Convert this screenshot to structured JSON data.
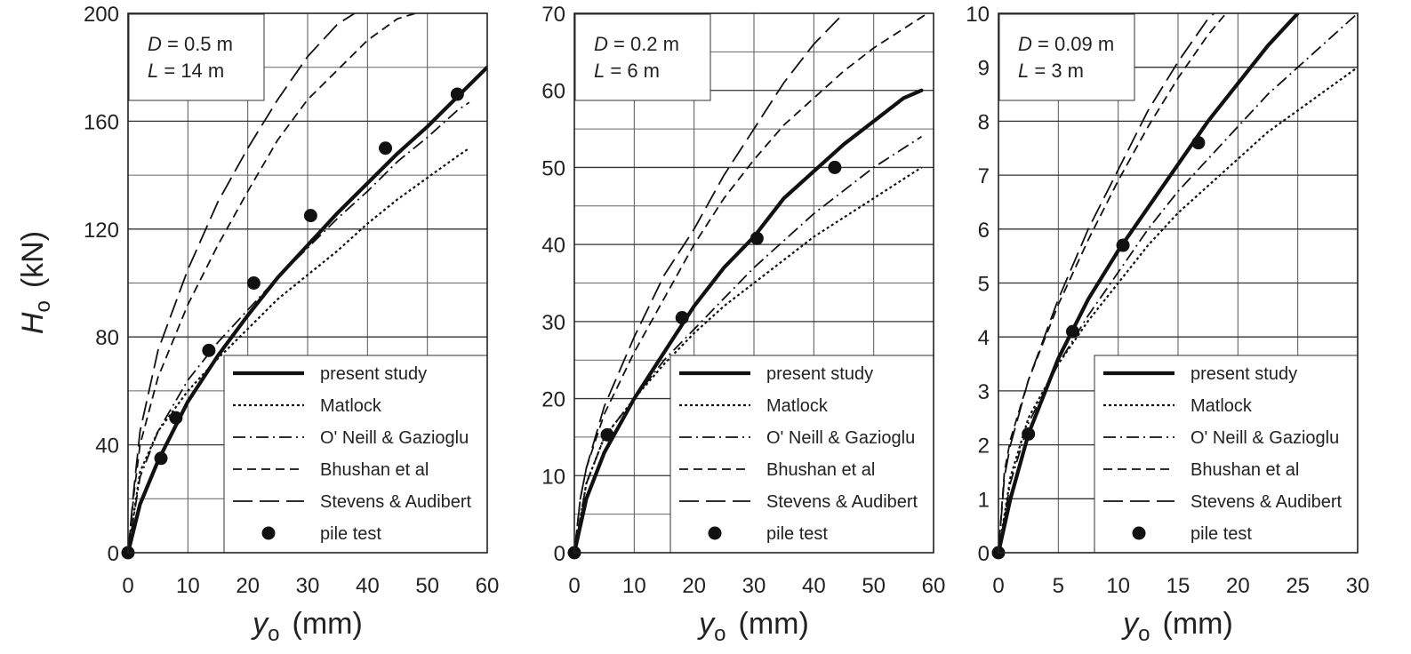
{
  "figure": {
    "ylabel_symbol": "H",
    "ylabel_sub": "o",
    "ylabel_unit": "(kN)",
    "xlabel_symbol": "y",
    "xlabel_sub": "o",
    "xlabel_unit": "(mm)"
  },
  "legend": [
    {
      "key": "present",
      "label": "present study",
      "kind": "line",
      "color": "#111111"
    },
    {
      "key": "matlock",
      "label": "Matlock",
      "kind": "line",
      "color": "#111111"
    },
    {
      "key": "oneill",
      "label": "O' Neill & Gazioglu",
      "kind": "line",
      "color": "#111111"
    },
    {
      "key": "bhushan",
      "label": "Bhushan et al",
      "kind": "line",
      "color": "#111111"
    },
    {
      "key": "stevens",
      "label": "Stevens & Audibert",
      "kind": "line",
      "color": "#111111"
    },
    {
      "key": "test",
      "label": "pile test",
      "kind": "marker",
      "color": "#111111"
    }
  ],
  "chart_data": [
    {
      "type": "line",
      "annotation": {
        "d_symbol": "D",
        "d_value": " = 0.5 m",
        "l_symbol": "L",
        "l_value": " = 14 m"
      },
      "xlim": [
        0,
        60
      ],
      "ylim": [
        0,
        200
      ],
      "xticks": [
        0,
        10,
        20,
        30,
        40,
        50,
        60
      ],
      "yticks": [
        0,
        40,
        80,
        120,
        160,
        200
      ],
      "grid": true,
      "legend_position": "bottom-right",
      "series": [
        {
          "key": "present",
          "x": [
            0,
            2,
            5,
            10,
            15,
            20,
            25,
            30,
            35,
            40,
            45,
            50,
            55,
            60
          ],
          "y": [
            0,
            18,
            34,
            56,
            73,
            88,
            102,
            114,
            126,
            137,
            148,
            158,
            169,
            180
          ]
        },
        {
          "key": "matlock",
          "x": [
            0,
            2,
            5,
            10,
            15,
            20,
            25,
            30,
            35,
            40,
            45,
            50,
            55,
            57
          ],
          "y": [
            0,
            30,
            45,
            60,
            72,
            83,
            94,
            103,
            112,
            122,
            131,
            139,
            147,
            150
          ]
        },
        {
          "key": "oneill",
          "x": [
            0,
            2,
            5,
            10,
            15,
            20,
            25,
            30,
            35,
            40,
            45,
            50,
            55,
            57
          ],
          "y": [
            0,
            28,
            45,
            64,
            78,
            90,
            102,
            113,
            124,
            134,
            145,
            154,
            164,
            167
          ]
        },
        {
          "key": "bhushan",
          "x": [
            0,
            1,
            2,
            5,
            10,
            15,
            20,
            25,
            30,
            35,
            40,
            45,
            48
          ],
          "y": [
            0,
            22,
            40,
            65,
            92,
            114,
            134,
            153,
            168,
            179,
            190,
            198,
            200
          ]
        },
        {
          "key": "stevens",
          "x": [
            0,
            1,
            2,
            5,
            10,
            15,
            20,
            25,
            30,
            35,
            40,
            44
          ],
          "y": [
            0,
            24,
            45,
            75,
            105,
            130,
            150,
            168,
            184,
            196,
            203,
            207
          ]
        },
        {
          "key": "test",
          "x": [
            0,
            5.5,
            8,
            13.5,
            21,
            30.5,
            43,
            55
          ],
          "y": [
            0,
            35,
            50,
            75,
            100,
            125,
            150,
            170
          ]
        }
      ]
    },
    {
      "type": "line",
      "annotation": {
        "d_symbol": "D",
        "d_value": " = 0.2 m",
        "l_symbol": "L",
        "l_value": " = 6 m"
      },
      "xlim": [
        0,
        60
      ],
      "ylim": [
        0,
        70
      ],
      "xticks": [
        0,
        10,
        20,
        30,
        40,
        50,
        60
      ],
      "yticks": [
        0,
        10,
        20,
        30,
        40,
        50,
        60,
        70
      ],
      "grid": true,
      "legend_position": "bottom-right",
      "series": [
        {
          "key": "present",
          "x": [
            0,
            2,
            5,
            10,
            15,
            20,
            25,
            30,
            35,
            40,
            45,
            50,
            55,
            58
          ],
          "y": [
            0,
            7,
            13,
            20,
            26,
            32,
            37,
            41,
            46,
            49.5,
            53,
            56,
            59,
            60
          ]
        },
        {
          "key": "matlock",
          "x": [
            0,
            2,
            5,
            10,
            15,
            20,
            25,
            30,
            35,
            40,
            45,
            50,
            55,
            58
          ],
          "y": [
            0,
            9,
            15,
            20,
            24.5,
            28.5,
            32,
            35,
            38,
            41,
            43.5,
            46,
            48.5,
            50
          ]
        },
        {
          "key": "oneill",
          "x": [
            0,
            2,
            5,
            10,
            15,
            20,
            25,
            30,
            35,
            40,
            45,
            50,
            55,
            58
          ],
          "y": [
            0,
            9,
            15,
            20,
            25,
            29,
            33,
            37,
            40.5,
            44,
            47,
            50,
            52.5,
            54
          ]
        },
        {
          "key": "bhushan",
          "x": [
            0,
            1,
            2,
            5,
            10,
            15,
            20,
            25,
            30,
            35,
            40,
            45,
            50,
            55,
            59
          ],
          "y": [
            0,
            7,
            11,
            18,
            26,
            33,
            40,
            46,
            51,
            55.5,
            59,
            62.5,
            65.5,
            68,
            70
          ]
        },
        {
          "key": "stevens",
          "x": [
            0,
            1,
            2,
            5,
            10,
            15,
            20,
            25,
            30,
            35,
            40,
            45,
            48
          ],
          "y": [
            0,
            7,
            11,
            19,
            28,
            36,
            42,
            49,
            55,
            61,
            66,
            70,
            71
          ]
        },
        {
          "key": "test",
          "x": [
            0,
            5.5,
            18,
            30.5,
            43.5
          ],
          "y": [
            0,
            15.3,
            30.5,
            40.8,
            50
          ]
        }
      ]
    },
    {
      "type": "line",
      "annotation": {
        "d_symbol": "D",
        "d_value": " = 0.09 m",
        "l_symbol": "L",
        "l_value": " = 3 m"
      },
      "xlim": [
        0,
        30
      ],
      "ylim": [
        0,
        10
      ],
      "xticks": [
        0,
        5,
        10,
        15,
        20,
        25,
        30
      ],
      "yticks": [
        0,
        1,
        2,
        3,
        4,
        5,
        6,
        7,
        8,
        9,
        10
      ],
      "grid": true,
      "legend_position": "bottom-right",
      "series": [
        {
          "key": "present",
          "x": [
            0,
            1,
            2.5,
            5,
            7.5,
            10,
            12.5,
            15,
            17.5,
            20,
            22.5,
            25,
            26
          ],
          "y": [
            0,
            1.0,
            2.2,
            3.6,
            4.7,
            5.6,
            6.4,
            7.2,
            8.0,
            8.7,
            9.4,
            10.0,
            10.2
          ]
        },
        {
          "key": "matlock",
          "x": [
            0,
            1,
            2.5,
            5,
            7.5,
            10,
            12.5,
            15,
            17.5,
            20,
            22.5,
            25,
            27.5,
            30
          ],
          "y": [
            0,
            1.4,
            2.5,
            3.5,
            4.3,
            5.0,
            5.7,
            6.3,
            6.8,
            7.3,
            7.8,
            8.2,
            8.6,
            9.0
          ]
        },
        {
          "key": "oneill",
          "x": [
            0,
            1,
            2.5,
            5,
            7.5,
            10,
            12.5,
            15,
            17.5,
            20,
            22.5,
            25,
            27.5,
            30
          ],
          "y": [
            0,
            1.3,
            2.4,
            3.5,
            4.4,
            5.2,
            6.0,
            6.7,
            7.3,
            7.9,
            8.5,
            9.0,
            9.5,
            10.0
          ]
        },
        {
          "key": "bhushan",
          "x": [
            0,
            0.5,
            1,
            2.5,
            5,
            7.5,
            10,
            12.5,
            15,
            17.5,
            19
          ],
          "y": [
            0,
            1.5,
            2.1,
            3.2,
            4.6,
            5.8,
            6.9,
            7.9,
            8.8,
            9.6,
            10.0
          ]
        },
        {
          "key": "stevens",
          "x": [
            0,
            0.5,
            1,
            2.5,
            5,
            7.5,
            10,
            12.5,
            15,
            17.5,
            20
          ],
          "y": [
            0,
            1.4,
            2.0,
            3.2,
            4.7,
            6.0,
            7.1,
            8.2,
            9.1,
            9.9,
            10.4
          ]
        },
        {
          "key": "test",
          "x": [
            0,
            2.5,
            6.2,
            10.4,
            16.7
          ],
          "y": [
            0,
            2.2,
            4.1,
            5.7,
            7.6
          ]
        }
      ]
    }
  ]
}
